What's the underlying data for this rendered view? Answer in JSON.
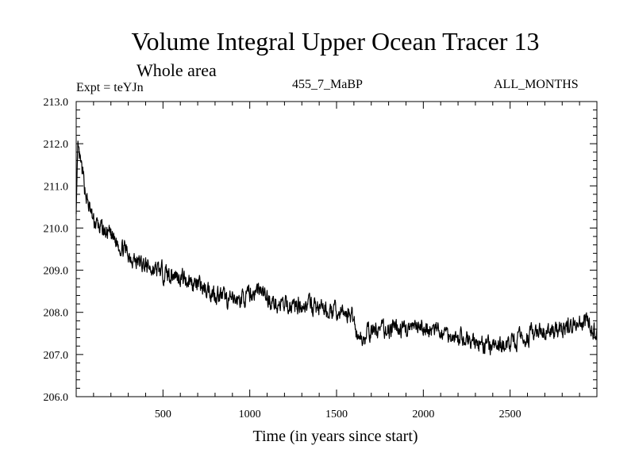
{
  "chart_data": {
    "type": "line",
    "title": "Volume Integral Upper Ocean Tracer 13",
    "subtitle": "Whole area",
    "expt_label": "Expt = teYJn",
    "run_label": "455_7_MaBP",
    "period_label": "ALL_MONTHS",
    "xlabel": "Time (in years since start)",
    "ylabel": "",
    "xlim": [
      0,
      3000
    ],
    "ylim": [
      206.0,
      213.0
    ],
    "xticks": [
      500,
      1000,
      1500,
      2000,
      2500
    ],
    "xtick_labels": [
      "500",
      "1000",
      "1500",
      "2000",
      "2500"
    ],
    "yticks": [
      206.0,
      207.0,
      208.0,
      209.0,
      210.0,
      211.0,
      212.0,
      213.0
    ],
    "ytick_labels": [
      "206.0",
      "207.0",
      "208.0",
      "209.0",
      "210.0",
      "211.0",
      "212.0",
      "213.0"
    ],
    "series": [
      {
        "name": "Tracer 13",
        "color": "#000000",
        "x": [
          0,
          10,
          20,
          40,
          60,
          80,
          100,
          150,
          200,
          250,
          300,
          350,
          400,
          450,
          500,
          600,
          700,
          800,
          900,
          1000,
          1050,
          1100,
          1150,
          1200,
          1300,
          1400,
          1500,
          1580,
          1600,
          1610,
          1620,
          1650,
          1700,
          1800,
          1900,
          2000,
          2100,
          2200,
          2300,
          2400,
          2450,
          2500,
          2550,
          2600,
          2700,
          2800,
          2850,
          2900,
          2950,
          3000
        ],
        "y": [
          210.5,
          211.8,
          211.6,
          211.2,
          210.7,
          210.4,
          210.15,
          209.95,
          209.8,
          209.6,
          209.4,
          209.2,
          209.1,
          209.0,
          208.95,
          208.85,
          208.65,
          208.45,
          208.25,
          208.4,
          208.55,
          208.35,
          208.2,
          208.15,
          208.2,
          208.1,
          208.0,
          207.95,
          207.9,
          207.6,
          207.4,
          207.4,
          207.55,
          207.6,
          207.6,
          207.6,
          207.55,
          207.4,
          207.3,
          207.15,
          207.2,
          207.25,
          207.35,
          207.45,
          207.5,
          207.6,
          207.7,
          207.8,
          207.75,
          207.5
        ]
      }
    ]
  }
}
